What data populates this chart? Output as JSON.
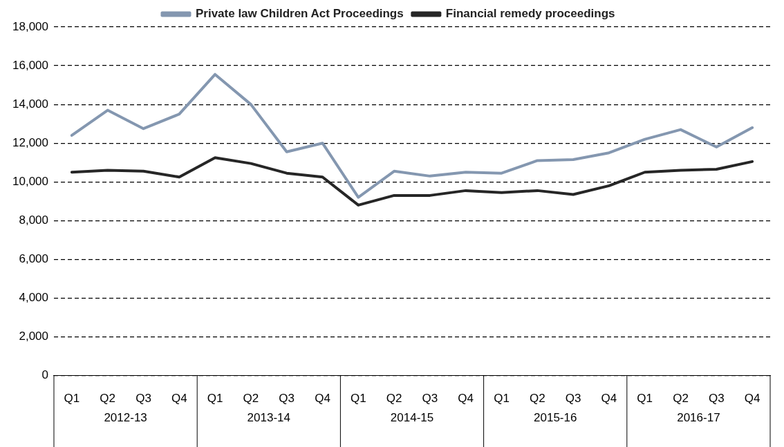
{
  "chart_data": {
    "type": "line",
    "categories": [
      "Q1",
      "Q2",
      "Q3",
      "Q4",
      "Q1",
      "Q2",
      "Q3",
      "Q4",
      "Q1",
      "Q2",
      "Q3",
      "Q4",
      "Q1",
      "Q2",
      "Q3",
      "Q4",
      "Q1",
      "Q2",
      "Q3",
      "Q4"
    ],
    "annotations": [
      "2012-13",
      "2013-14",
      "2014-15",
      "2015-16",
      "2016-17"
    ],
    "series": [
      {
        "name": "Private law Children Act Proceedings",
        "color": "#8497b0",
        "values": [
          12400,
          13700,
          12750,
          13500,
          15550,
          14000,
          11550,
          12000,
          9200,
          10550,
          10300,
          10500,
          10450,
          11100,
          11150,
          11500,
          12200,
          12700,
          11800,
          12800
        ]
      },
      {
        "name": "Financial remedy proceedings",
        "color": "#262626",
        "values": [
          10500,
          10600,
          10550,
          10250,
          11250,
          10950,
          10450,
          10250,
          8800,
          9300,
          9300,
          9550,
          9450,
          9550,
          9350,
          9800,
          10500,
          10600,
          10650,
          11050
        ]
      }
    ],
    "ylim": [
      0,
      18000
    ],
    "yticks": [
      {
        "value": 0,
        "label": "0"
      },
      {
        "value": 2000,
        "label": "2,000"
      },
      {
        "value": 4000,
        "label": "4,000"
      },
      {
        "value": 6000,
        "label": "6,000"
      },
      {
        "value": 8000,
        "label": "8,000"
      },
      {
        "value": 10000,
        "label": "10,000"
      },
      {
        "value": 12000,
        "label": "12,000"
      },
      {
        "value": 14000,
        "label": "14,000"
      },
      {
        "value": 16000,
        "label": "16,000"
      },
      {
        "value": 18000,
        "label": "18,000"
      }
    ],
    "grid": "y",
    "legend": "top",
    "marker": "none",
    "line_style": "solid"
  }
}
